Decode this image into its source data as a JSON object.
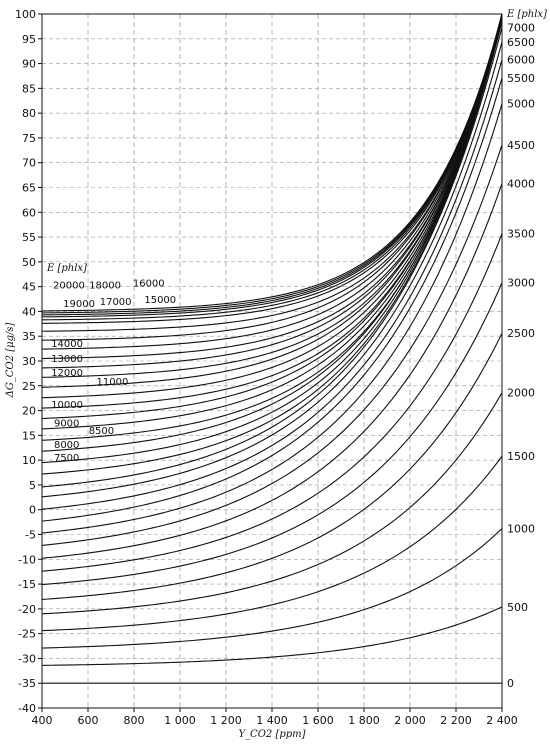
{
  "chart_data": {
    "type": "line",
    "xlabel": "Y_CO2 [ppm]",
    "ylabel": "ΔG_CO2 [μg/s]",
    "xlim": [
      400,
      2400
    ],
    "ylim": [
      -40,
      100
    ],
    "x_ticks": [
      "400",
      "600",
      "800",
      "1 000",
      "1 200",
      "1 400",
      "1 600",
      "1 800",
      "2 000",
      "2 200",
      "2 400"
    ],
    "x_tick_values": [
      400,
      600,
      800,
      1000,
      1200,
      1400,
      1600,
      1800,
      2000,
      2200,
      2400
    ],
    "y_ticks": [
      -40,
      -35,
      -30,
      -25,
      -20,
      -15,
      -10,
      -5,
      0,
      5,
      10,
      15,
      20,
      25,
      30,
      35,
      40,
      45,
      50,
      55,
      60,
      65,
      70,
      75,
      80,
      85,
      90,
      95,
      100
    ],
    "grid": true,
    "parameter_title": "E [phlx]",
    "right_labels": [
      {
        "text": "E [phlx]",
        "y": 100.2
      },
      {
        "text": "7000",
        "y": 97.3
      },
      {
        "text": "6500",
        "y": 94.4
      },
      {
        "text": "6000",
        "y": 90.8
      },
      {
        "text": "5500",
        "y": 87.1
      },
      {
        "text": "5000",
        "y": 81.9
      },
      {
        "text": "4500",
        "y": 73.6
      },
      {
        "text": "4000",
        "y": 65.8
      },
      {
        "text": "3500",
        "y": 55.7
      },
      {
        "text": "3000",
        "y": 45.8
      },
      {
        "text": "2500",
        "y": 35.6
      },
      {
        "text": "2000",
        "y": 23.6
      },
      {
        "text": "1500",
        "y": 10.8
      },
      {
        "text": "1000",
        "y": -3.8
      },
      {
        "text": "500",
        "y": -19.6
      },
      {
        "text": "0",
        "y": -35.0
      }
    ],
    "left_labels": [
      {
        "text": "20000",
        "x": 448,
        "y": 45.4
      },
      {
        "text": "19000",
        "x": 492,
        "y": 41.7
      },
      {
        "text": "18000",
        "x": 605,
        "y": 45.4
      },
      {
        "text": "17000",
        "x": 651,
        "y": 42.1
      },
      {
        "text": "16000",
        "x": 795,
        "y": 45.8
      },
      {
        "text": "15000",
        "x": 845,
        "y": 42.5
      },
      {
        "text": "14000",
        "x": 440,
        "y": 33.6
      },
      {
        "text": "13000",
        "x": 440,
        "y": 30.6
      },
      {
        "text": "12000",
        "x": 440,
        "y": 27.8
      },
      {
        "text": "11000",
        "x": 637,
        "y": 26.0
      },
      {
        "text": "10000",
        "x": 440,
        "y": 21.3
      },
      {
        "text": "9000",
        "x": 452,
        "y": 17.6
      },
      {
        "text": "8500",
        "x": 603,
        "y": 16.1
      },
      {
        "text": "8000",
        "x": 452,
        "y": 13.3
      },
      {
        "text": "7500",
        "x": 452,
        "y": 10.6
      }
    ],
    "series": [
      {
        "x0": 400,
        "y0": -35.0,
        "y_end": -35.0,
        "k": 2.0
      },
      {
        "x0": 400,
        "y0": -31.4,
        "y_end": -19.6,
        "k": 3.6
      },
      {
        "x0": 400,
        "y0": -27.9,
        "y_end": -3.8,
        "k": 3.6
      },
      {
        "x0": 400,
        "y0": -24.4,
        "y_end": 10.8,
        "k": 3.5
      },
      {
        "x0": 400,
        "y0": -21.0,
        "y_end": 23.6,
        "k": 3.5
      },
      {
        "x0": 400,
        "y0": -18.1,
        "y_end": 35.6,
        "k": 3.4
      },
      {
        "x0": 400,
        "y0": -15.1,
        "y_end": 45.8,
        "k": 3.4
      },
      {
        "x0": 400,
        "y0": -12.4,
        "y_end": 55.7,
        "k": 3.4
      },
      {
        "x0": 400,
        "y0": -9.8,
        "y_end": 65.8,
        "k": 3.4
      },
      {
        "x0": 400,
        "y0": -7.2,
        "y_end": 73.6,
        "k": 3.4
      },
      {
        "x0": 400,
        "y0": -4.7,
        "y_end": 81.9,
        "k": 3.5
      },
      {
        "x0": 400,
        "y0": -2.3,
        "y_end": 87.1,
        "k": 3.5
      },
      {
        "x0": 400,
        "y0": 0.1,
        "y_end": 90.8,
        "k": 3.6
      },
      {
        "x0": 400,
        "y0": 2.6,
        "y_end": 94.4,
        "k": 3.7
      },
      {
        "x0": 400,
        "y0": 4.6,
        "y_end": 97.3,
        "k": 3.8
      },
      {
        "x0": 400,
        "y0": 7.2,
        "y_end": 98.5,
        "k": 4.0
      },
      {
        "x0": 400,
        "y0": 9.5,
        "y_end": 98.7,
        "k": 4.1
      },
      {
        "x0": 400,
        "y0": 11.8,
        "y_end": 98.9,
        "k": 4.2
      },
      {
        "x0": 400,
        "y0": 14.0,
        "y_end": 99.0,
        "k": 4.4
      },
      {
        "x0": 400,
        "y0": 16.3,
        "y_end": 99.1,
        "k": 4.5
      },
      {
        "x0": 400,
        "y0": 18.4,
        "y_end": 99.2,
        "k": 4.6
      },
      {
        "x0": 400,
        "y0": 20.5,
        "y_end": 99.3,
        "k": 4.8
      },
      {
        "x0": 400,
        "y0": 22.6,
        "y_end": 99.4,
        "k": 4.9
      },
      {
        "x0": 400,
        "y0": 24.7,
        "y_end": 99.5,
        "k": 5.0
      },
      {
        "x0": 400,
        "y0": 26.7,
        "y_end": 99.6,
        "k": 5.2
      },
      {
        "x0": 400,
        "y0": 28.6,
        "y_end": 99.7,
        "k": 5.3
      },
      {
        "x0": 400,
        "y0": 30.5,
        "y_end": 99.8,
        "k": 5.5
      },
      {
        "x0": 400,
        "y0": 32.4,
        "y_end": 99.8,
        "k": 5.6
      },
      {
        "x0": 400,
        "y0": 34.2,
        "y_end": 99.9,
        "k": 5.7
      },
      {
        "x0": 400,
        "y0": 36.0,
        "y_end": 99.9,
        "k": 5.9
      },
      {
        "x0": 400,
        "y0": 37.6,
        "y_end": 100.0,
        "k": 6.0
      },
      {
        "x0": 400,
        "y0": 38.3,
        "y_end": 100.0,
        "k": 6.0
      },
      {
        "x0": 400,
        "y0": 38.9,
        "y_end": 100.0,
        "k": 6.0
      },
      {
        "x0": 400,
        "y0": 39.3,
        "y_end": 100.0,
        "k": 6.0
      },
      {
        "x0": 400,
        "y0": 39.7,
        "y_end": 100.0,
        "k": 6.0
      },
      {
        "x0": 400,
        "y0": 40.1,
        "y_end": 100.0,
        "k": 6.0
      }
    ]
  }
}
